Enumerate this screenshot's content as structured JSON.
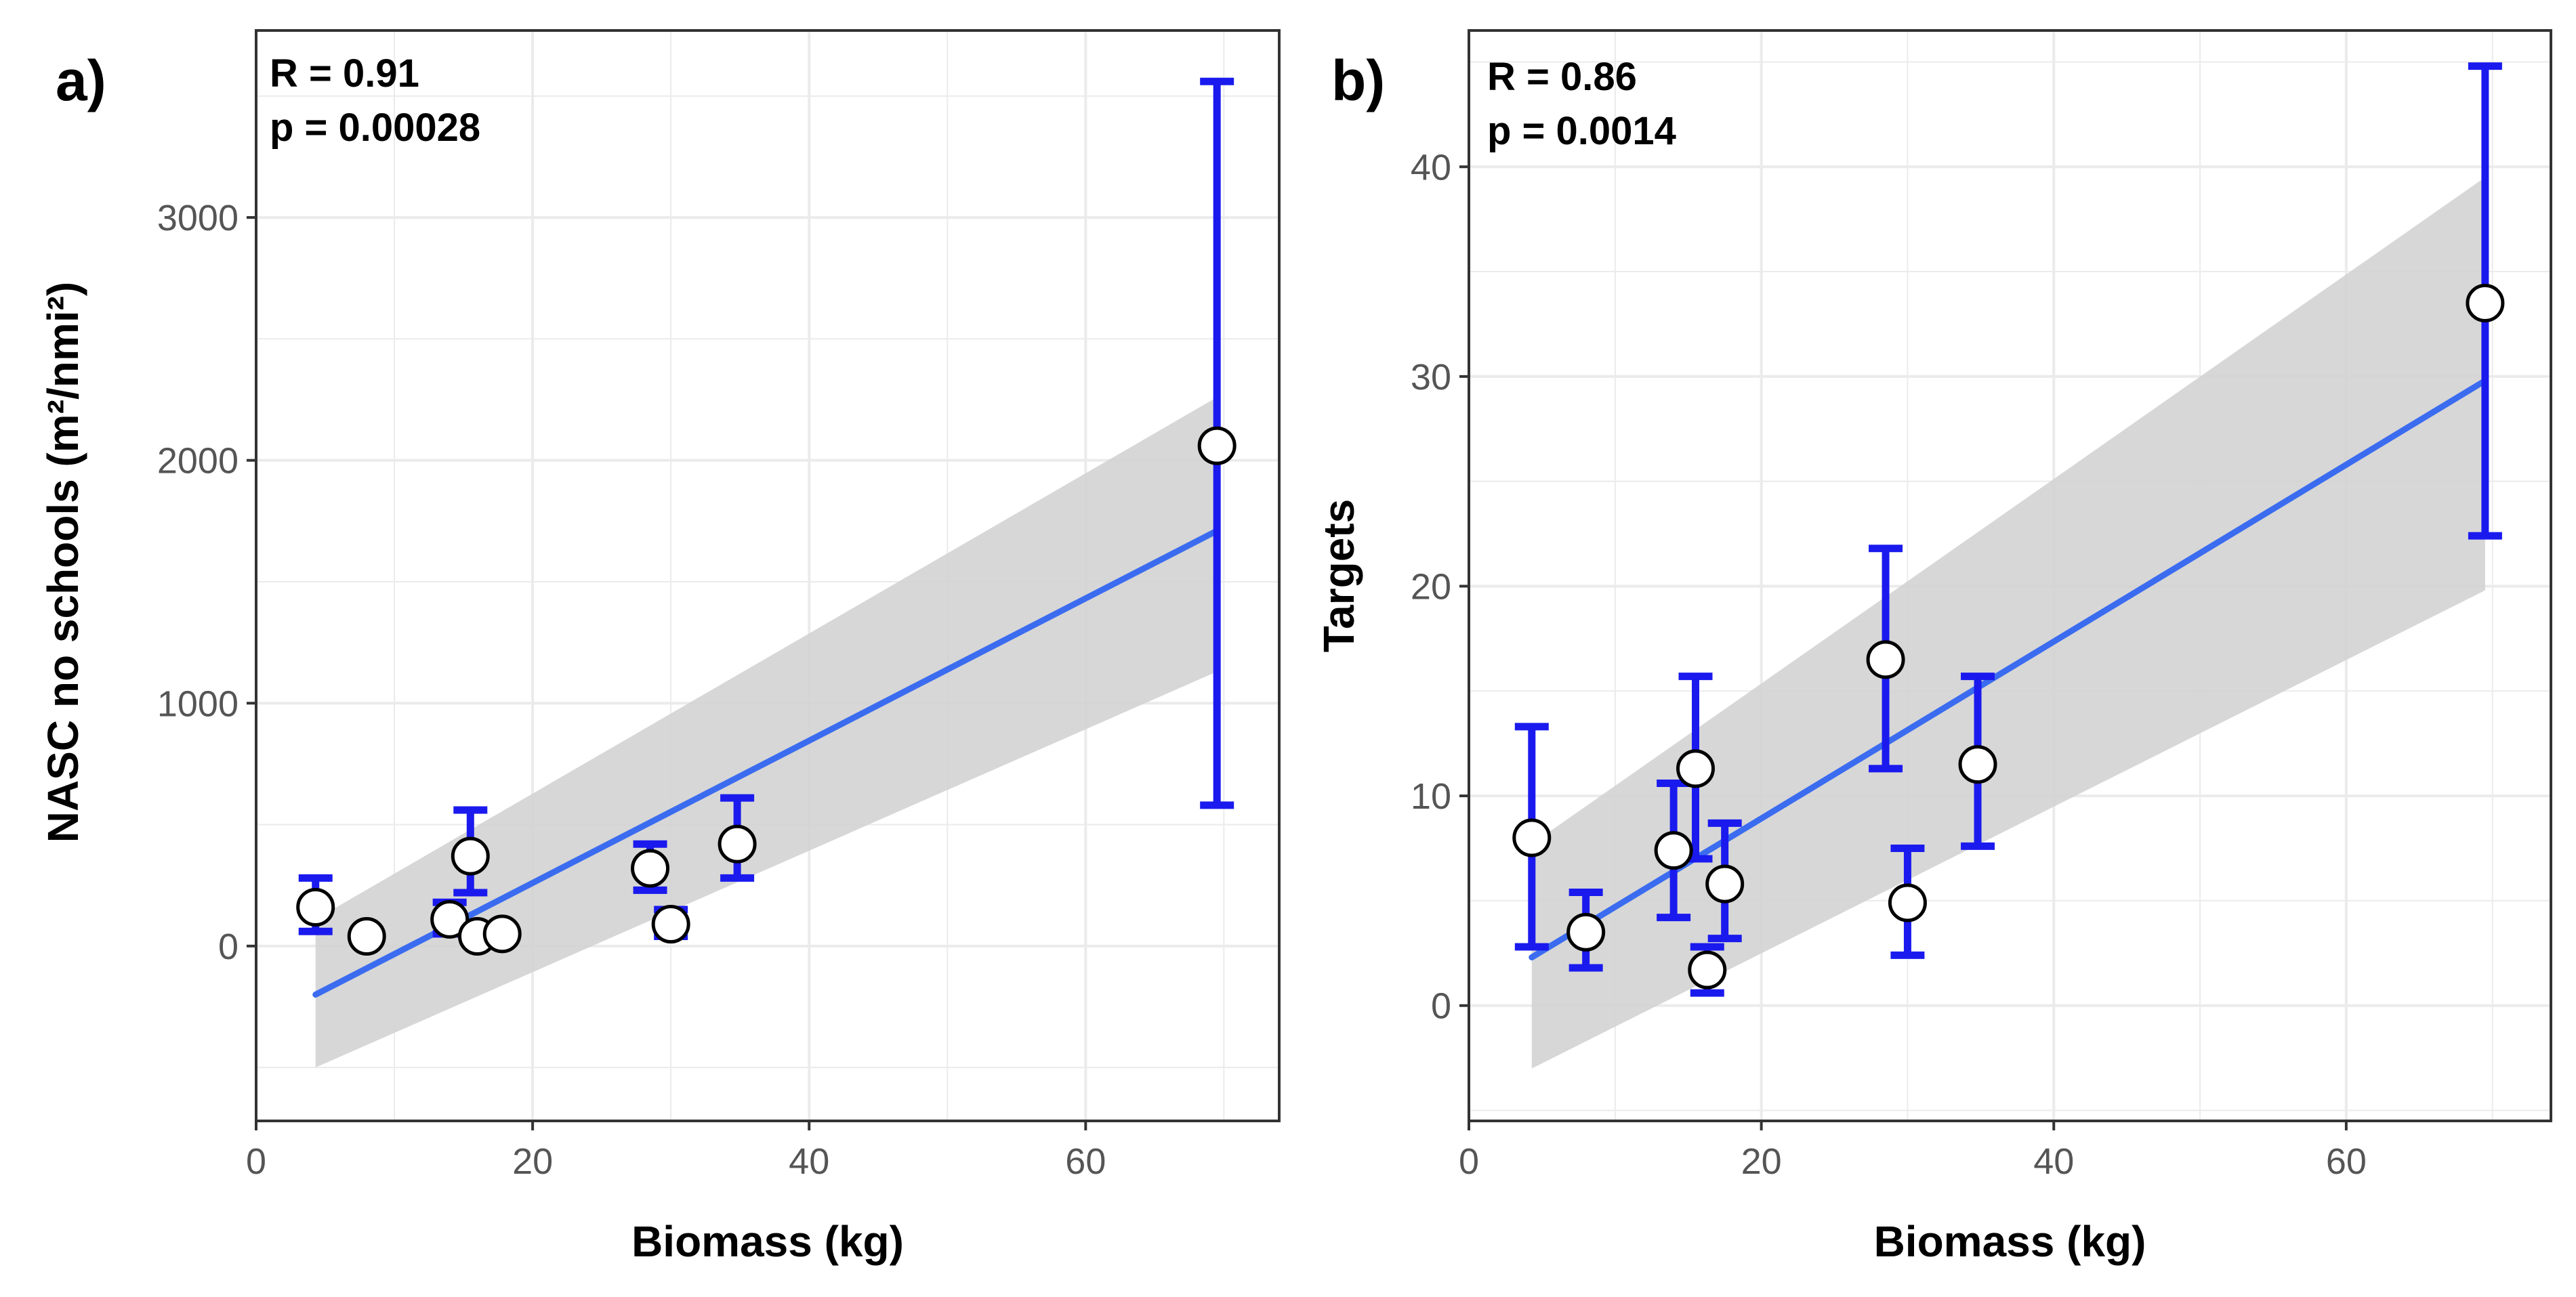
{
  "chart_data": [
    {
      "type": "scatter",
      "panel_label": "a)",
      "annotations": [
        "R = 0.91",
        "p = 0.00028"
      ],
      "xlabel": "Biomass (kg)",
      "ylabel": "NASC no schools (m²/nmi²)",
      "xlim": [
        0,
        74
      ],
      "ylim": [
        -720,
        3770
      ],
      "x_ticks": [
        0,
        20,
        40,
        60
      ],
      "y_ticks": [
        0,
        1000,
        2000,
        3000
      ],
      "grid": true,
      "points": [
        {
          "x": 4.3,
          "y": 160,
          "err_low": 60,
          "err_high": 280
        },
        {
          "x": 8.0,
          "y": 40,
          "err_low": null,
          "err_high": null
        },
        {
          "x": 14.0,
          "y": 110,
          "err_low": 50,
          "err_high": 180
        },
        {
          "x": 15.5,
          "y": 370,
          "err_low": 220,
          "err_high": 560
        },
        {
          "x": 16.0,
          "y": 40,
          "err_low": null,
          "err_high": null
        },
        {
          "x": 17.8,
          "y": 50,
          "err_low": null,
          "err_high": null
        },
        {
          "x": 28.5,
          "y": 320,
          "err_low": 230,
          "err_high": 420
        },
        {
          "x": 30.0,
          "y": 90,
          "err_low": 40,
          "err_high": 150
        },
        {
          "x": 34.8,
          "y": 420,
          "err_low": 280,
          "err_high": 610
        },
        {
          "x": 69.5,
          "y": 2060,
          "err_low": 580,
          "err_high": 3560
        }
      ],
      "fit": {
        "x": [
          4.3,
          69.5
        ],
        "y": [
          -200,
          1710
        ],
        "ci_lower": [
          -500,
          1130
        ],
        "ci_upper": [
          110,
          2260
        ]
      },
      "colors": {
        "error_bar": "#1a1aee",
        "fit_line": "#3b6cf0",
        "ci_band": "#d3d3d3"
      }
    },
    {
      "type": "scatter",
      "panel_label": "b)",
      "annotations": [
        "R = 0.86",
        "p = 0.0014"
      ],
      "xlabel": "Biomass (kg)",
      "ylabel": "Targets",
      "xlim": [
        0,
        74
      ],
      "ylim": [
        -5.5,
        46.5
      ],
      "x_ticks": [
        0,
        20,
        40,
        60
      ],
      "y_ticks": [
        0,
        10,
        20,
        30,
        40
      ],
      "grid": true,
      "points": [
        {
          "x": 4.3,
          "y": 8.0,
          "err_low": 2.8,
          "err_high": 13.3
        },
        {
          "x": 8.0,
          "y": 3.5,
          "err_low": 1.8,
          "err_high": 5.4
        },
        {
          "x": 14.0,
          "y": 7.4,
          "err_low": 4.2,
          "err_high": 10.6
        },
        {
          "x": 15.5,
          "y": 11.3,
          "err_low": 7.0,
          "err_high": 15.7
        },
        {
          "x": 16.3,
          "y": 1.7,
          "err_low": 0.6,
          "err_high": 2.8
        },
        {
          "x": 17.5,
          "y": 5.8,
          "err_low": 3.2,
          "err_high": 8.7
        },
        {
          "x": 28.5,
          "y": 16.5,
          "err_low": 11.3,
          "err_high": 21.8
        },
        {
          "x": 30.0,
          "y": 4.9,
          "err_low": 2.4,
          "err_high": 7.5
        },
        {
          "x": 34.8,
          "y": 11.5,
          "err_low": 7.6,
          "err_high": 15.7
        },
        {
          "x": 69.5,
          "y": 33.5,
          "err_low": 22.4,
          "err_high": 44.8
        }
      ],
      "fit": {
        "x": [
          4.3,
          69.5
        ],
        "y": [
          2.3,
          29.8
        ],
        "ci_lower": [
          -3.0,
          19.8
        ],
        "ci_upper": [
          7.7,
          39.5
        ]
      },
      "colors": {
        "error_bar": "#1a1aee",
        "fit_line": "#3b6cf0",
        "ci_band": "#d3d3d3"
      }
    }
  ]
}
